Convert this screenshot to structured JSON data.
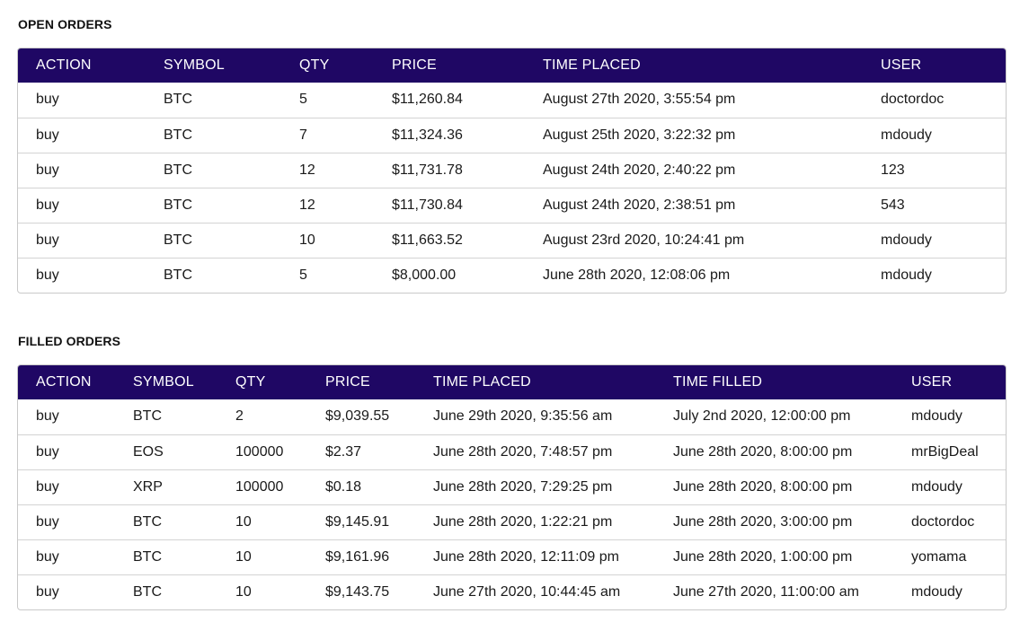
{
  "open_orders": {
    "title": "OPEN ORDERS",
    "columns": [
      "ACTION",
      "SYMBOL",
      "QTY",
      "PRICE",
      "TIME PLACED",
      "USER"
    ],
    "rows": [
      [
        "buy",
        "BTC",
        "5",
        "$11,260.84",
        "August 27th 2020, 3:55:54 pm",
        "doctordoc"
      ],
      [
        "buy",
        "BTC",
        "7",
        "$11,324.36",
        "August 25th 2020, 3:22:32 pm",
        "mdoudy"
      ],
      [
        "buy",
        "BTC",
        "12",
        "$11,731.78",
        "August 24th 2020, 2:40:22 pm",
        "123"
      ],
      [
        "buy",
        "BTC",
        "12",
        "$11,730.84",
        "August 24th 2020, 2:38:51 pm",
        "543"
      ],
      [
        "buy",
        "BTC",
        "10",
        "$11,663.52",
        "August 23rd 2020, 10:24:41 pm",
        "mdoudy"
      ],
      [
        "buy",
        "BTC",
        "5",
        "$8,000.00",
        "June 28th 2020, 12:08:06 pm",
        "mdoudy"
      ]
    ]
  },
  "filled_orders": {
    "title": "FILLED ORDERS",
    "columns": [
      "ACTION",
      "SYMBOL",
      "QTY",
      "PRICE",
      "TIME PLACED",
      "TIME FILLED",
      "USER"
    ],
    "rows": [
      [
        "buy",
        "BTC",
        "2",
        "$9,039.55",
        "June 29th 2020, 9:35:56 am",
        "July 2nd 2020, 12:00:00 pm",
        "mdoudy"
      ],
      [
        "buy",
        "EOS",
        "100000",
        "$2.37",
        "June 28th 2020, 7:48:57 pm",
        "June 28th 2020, 8:00:00 pm",
        "mrBigDeal"
      ],
      [
        "buy",
        "XRP",
        "100000",
        "$0.18",
        "June 28th 2020, 7:29:25 pm",
        "June 28th 2020, 8:00:00 pm",
        "mdoudy"
      ],
      [
        "buy",
        "BTC",
        "10",
        "$9,145.91",
        "June 28th 2020, 1:22:21 pm",
        "June 28th 2020, 3:00:00 pm",
        "doctordoc"
      ],
      [
        "buy",
        "BTC",
        "10",
        "$9,161.96",
        "June 28th 2020, 12:11:09 pm",
        "June 28th 2020, 1:00:00 pm",
        "yomama"
      ],
      [
        "buy",
        "BTC",
        "10",
        "$9,143.75",
        "June 27th 2020, 10:44:45 am",
        "June 27th 2020, 11:00:00 am",
        "mdoudy"
      ]
    ]
  },
  "colors": {
    "header_bg": "#1f0764",
    "header_text": "#ffffff",
    "border": "#c9c9c9"
  }
}
